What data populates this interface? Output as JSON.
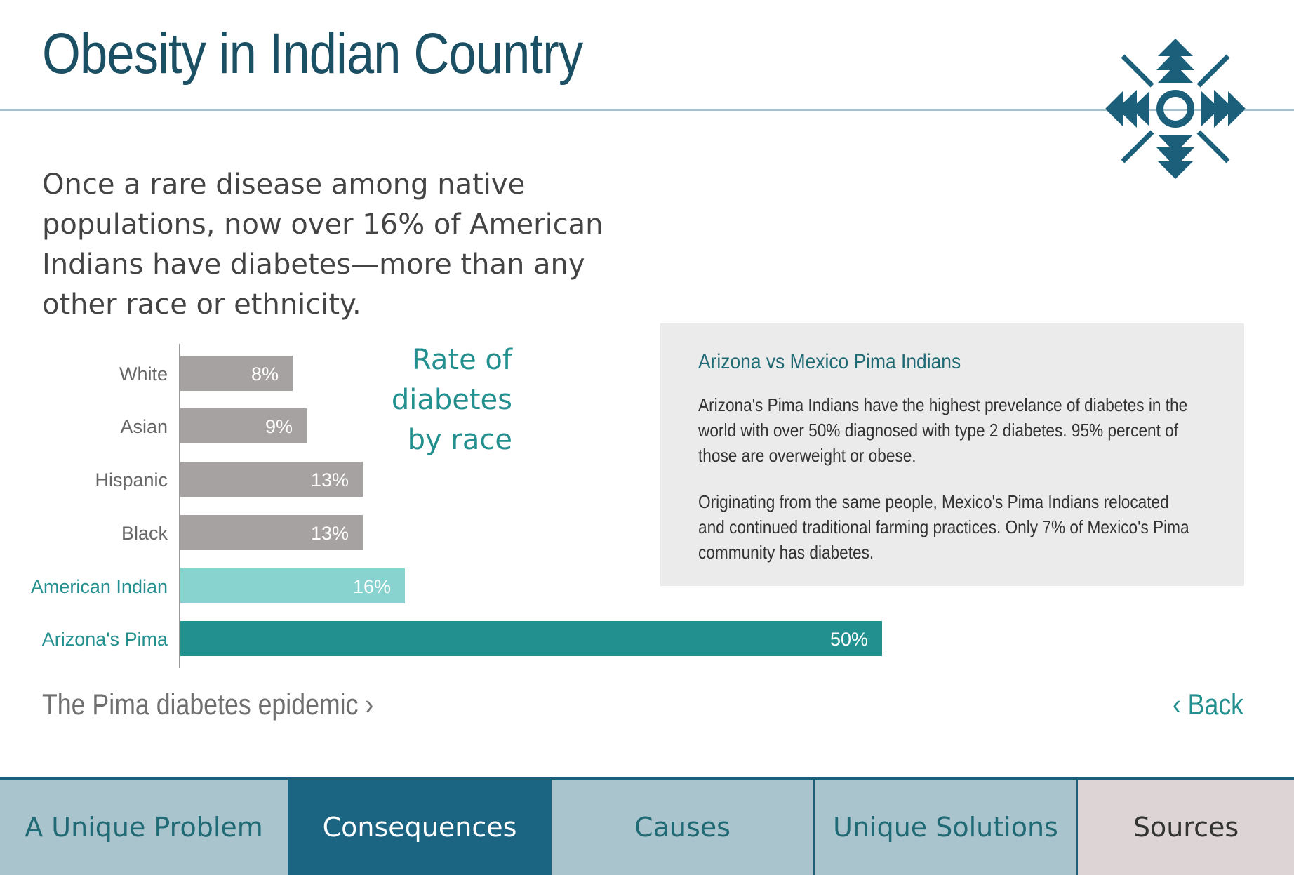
{
  "header": {
    "title": "Obesity in Indian Country"
  },
  "emblem": {
    "icon": "four-directions-emblem-icon",
    "color": "#1b5f7a"
  },
  "intro": {
    "text": "Once a rare disease among native populations, now over 16% of American Indians have diabetes—more than any other race or ethnicity."
  },
  "chart_title": [
    "Rate of",
    "diabetes",
    "by race"
  ],
  "chart_data": {
    "type": "bar",
    "orientation": "horizontal",
    "title": "Rate of diabetes by race",
    "categories": [
      "White",
      "Asian",
      "Hispanic",
      "Black",
      "American Indian",
      "Arizona's Pima"
    ],
    "values": [
      8,
      9,
      13,
      13,
      16,
      50
    ],
    "value_labels": [
      "8%",
      "9%",
      "13%",
      "13%",
      "16%",
      "50%"
    ],
    "unit": "%",
    "xlim": [
      0,
      50
    ],
    "bar_colors": [
      "#a7a2a2",
      "#a7a2a2",
      "#a7a2a2",
      "#a7a2a2",
      "#88d3d0",
      "#22908f"
    ],
    "label_colors": [
      "#666666",
      "#666666",
      "#666666",
      "#666666",
      "#23908f",
      "#23908f"
    ],
    "grid": false,
    "legend": "none"
  },
  "info_box": {
    "heading": "Arizona vs Mexico Pima Indians",
    "paragraphs": [
      "Arizona's Pima Indians have the highest prevelance of diabetes in the world with over 50% diagnosed with type 2 diabetes. 95% percent of those are overweight or obese.",
      "Originating from the same people, Mexico's Pima Indians relocated and continued traditional farming practices. Only 7% of Mexico's Pima community has diabetes."
    ]
  },
  "links": {
    "epidemic": "The Pima diabetes epidemic ›",
    "back": "‹ Back"
  },
  "nav": {
    "tabs": [
      {
        "label": "A Unique Problem"
      },
      {
        "label": "Consequences",
        "active": true
      },
      {
        "label": "Causes"
      },
      {
        "label": "Unique Solutions"
      },
      {
        "label": "Sources"
      }
    ]
  },
  "colors": {
    "title": "#1b4f63",
    "accent": "#23908f",
    "nav_active": "#1b6582",
    "nav_inactive": "#aac4ce",
    "nav_sources": "#ddd5d5"
  }
}
